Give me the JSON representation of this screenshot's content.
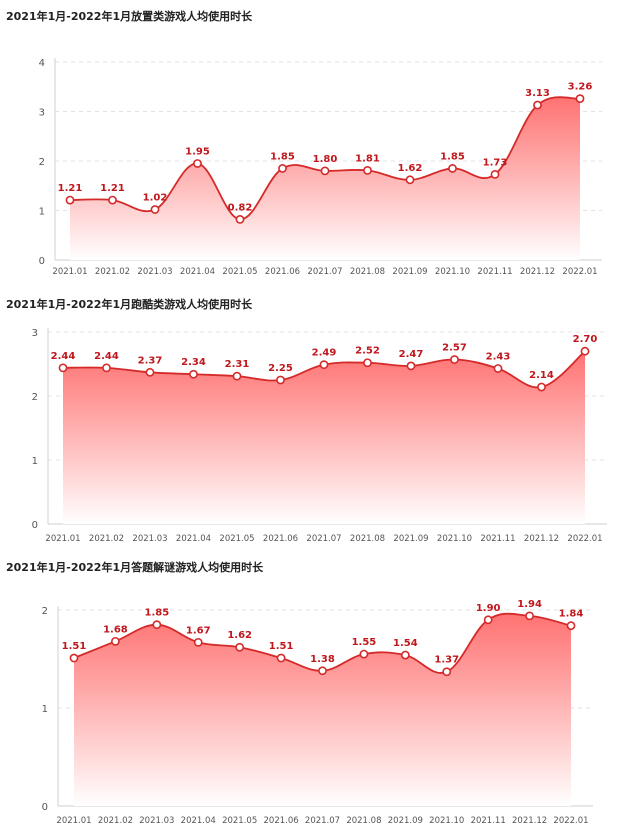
{
  "chart_data": [
    {
      "type": "area",
      "title": "2021年1月-2022年1月放置类游戏人均使用时长",
      "categories": [
        "2021.01",
        "2021.02",
        "2021.03",
        "2021.04",
        "2021.05",
        "2021.06",
        "2021.07",
        "2021.08",
        "2021.09",
        "2021.10",
        "2021.11",
        "2021.12",
        "2022.01"
      ],
      "values": [
        1.21,
        1.21,
        1.02,
        1.95,
        0.82,
        1.85,
        1.8,
        1.81,
        1.62,
        1.85,
        1.73,
        3.13,
        3.26
      ],
      "value_labels": [
        "1.21",
        "1.21",
        "1.02",
        "1.95",
        "0.82",
        "1.85",
        "1.80",
        "1.81",
        "1.62",
        "1.85",
        "1.73",
        "3.13",
        "3.26"
      ],
      "ylim": [
        0,
        4
      ],
      "yticks": [
        "0",
        "1",
        "2",
        "3",
        "4"
      ],
      "grid": true,
      "smooth": true,
      "color": "#d42a2a",
      "fill_top": "#ff6b6b",
      "fill_bottom": "#ffffff"
    },
    {
      "type": "area",
      "title": "2021年1月-2022年1月跑酷类游戏人均使用时长",
      "categories": [
        "2021.01",
        "2021.02",
        "2021.03",
        "2021.04",
        "2021.05",
        "2021.06",
        "2021.07",
        "2021.08",
        "2021.09",
        "2021.10",
        "2021.11",
        "2021.12",
        "2022.01"
      ],
      "values": [
        2.44,
        2.44,
        2.37,
        2.34,
        2.31,
        2.25,
        2.49,
        2.52,
        2.47,
        2.57,
        2.43,
        2.14,
        2.7
      ],
      "value_labels": [
        "2.44",
        "2.44",
        "2.37",
        "2.34",
        "2.31",
        "2.25",
        "2.49",
        "2.52",
        "2.47",
        "2.57",
        "2.43",
        "2.14",
        "2.70"
      ],
      "ylim": [
        0,
        3
      ],
      "yticks": [
        "0",
        "1",
        "2",
        "3"
      ],
      "grid": true,
      "smooth": true,
      "color": "#d42a2a",
      "fill_top": "#ff6b6b",
      "fill_bottom": "#ffffff"
    },
    {
      "type": "area",
      "title": "2021年1月-2022年1月答题解谜游戏人均使用时长",
      "categories": [
        "2021.01",
        "2021.02",
        "2021.03",
        "2021.04",
        "2021.05",
        "2021.06",
        "2021.07",
        "2021.08",
        "2021.09",
        "2021.10",
        "2021.11",
        "2021.12",
        "2022.01"
      ],
      "values": [
        1.51,
        1.68,
        1.85,
        1.67,
        1.62,
        1.51,
        1.38,
        1.55,
        1.54,
        1.37,
        1.9,
        1.94,
        1.84
      ],
      "value_labels": [
        "1.51",
        "1.68",
        "1.85",
        "1.67",
        "1.62",
        "1.51",
        "1.38",
        "1.55",
        "1.54",
        "1.37",
        "1.90",
        "1.94",
        "1.84"
      ],
      "ylim": [
        0,
        2
      ],
      "yticks": [
        "0",
        "1",
        "2"
      ],
      "grid": true,
      "smooth": true,
      "color": "#d42a2a",
      "fill_top": "#ff6b6b",
      "fill_bottom": "#ffffff"
    }
  ]
}
